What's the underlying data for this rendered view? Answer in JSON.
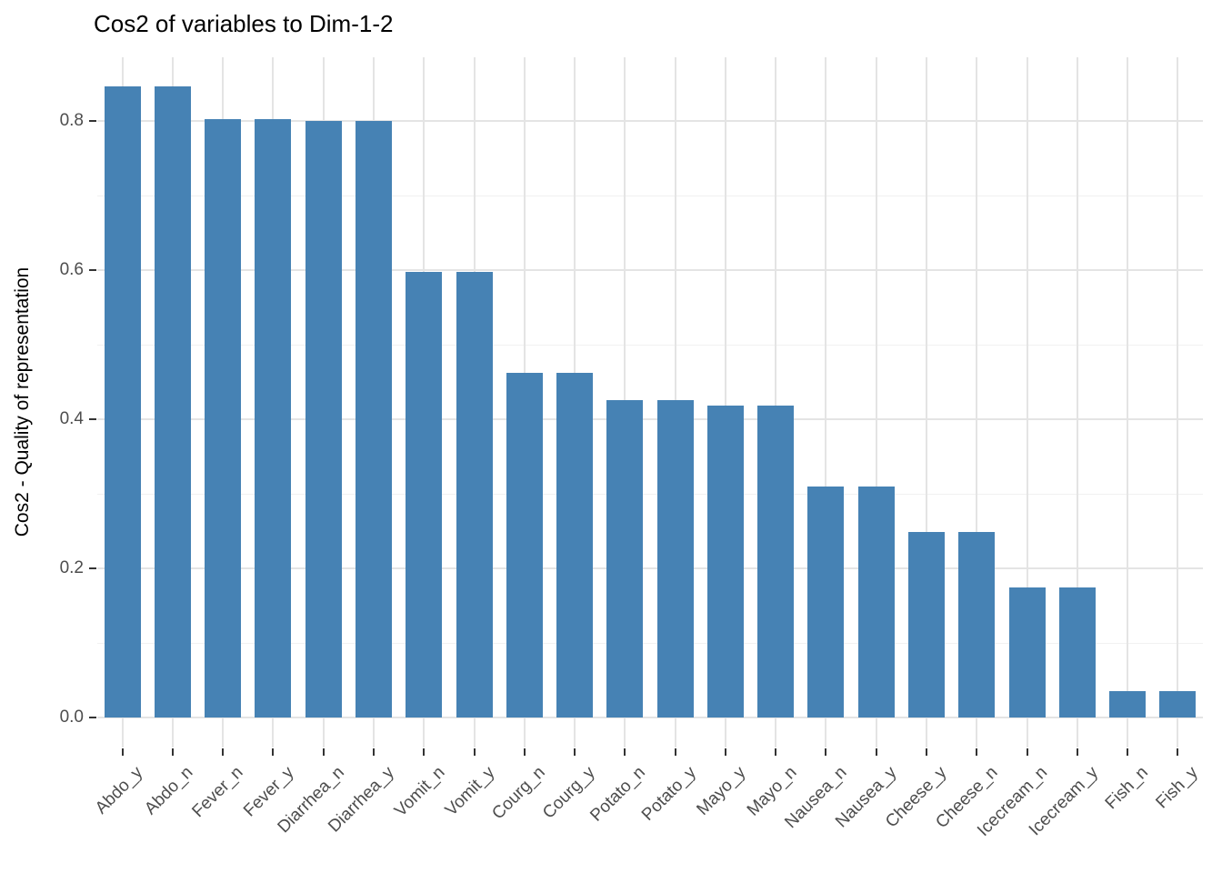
{
  "chart_data": {
    "type": "bar",
    "title": "Cos2 of variables to Dim-1-2",
    "xlabel": "",
    "ylabel": "Cos2 - Quality of representation",
    "categories": [
      "Abdo_y",
      "Abdo_n",
      "Fever_n",
      "Fever_y",
      "Diarrhea_n",
      "Diarrhea_y",
      "Vomit_n",
      "Vomit_y",
      "Courg_n",
      "Courg_y",
      "Potato_n",
      "Potato_y",
      "Mayo_y",
      "Mayo_n",
      "Nausea_n",
      "Nausea_y",
      "Cheese_y",
      "Cheese_n",
      "Icecream_n",
      "Icecream_y",
      "Fish_n",
      "Fish_y"
    ],
    "values": [
      0.846,
      0.846,
      0.803,
      0.803,
      0.8,
      0.8,
      0.597,
      0.597,
      0.462,
      0.462,
      0.426,
      0.426,
      0.418,
      0.418,
      0.31,
      0.31,
      0.249,
      0.249,
      0.174,
      0.174,
      0.035,
      0.035
    ],
    "ylim": [
      -0.04,
      0.885
    ],
    "yticks": [
      0.0,
      0.2,
      0.4,
      0.6,
      0.8
    ],
    "ytick_labels": [
      "0.0",
      "0.2",
      "0.4",
      "0.6",
      "0.8"
    ],
    "yticks_minor": [
      0.1,
      0.3,
      0.5,
      0.7
    ],
    "bar_color": "#4682B4",
    "grid": true,
    "legend_position": "none",
    "x_label_angle": 45
  }
}
